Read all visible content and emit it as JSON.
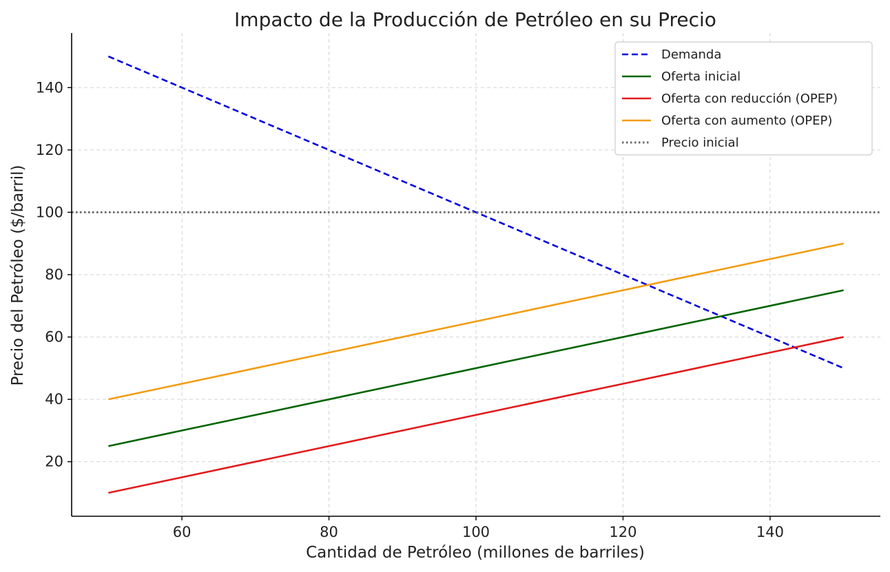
{
  "chart_data": {
    "type": "line",
    "title": "Impacto de la Producción de Petróleo en su Precio",
    "xlabel": "Cantidad de Petróleo (millones de barriles)",
    "ylabel": "Precio del Petróleo ($/barril)",
    "xlim": [
      45,
      155
    ],
    "ylim": [
      2.5,
      157.5
    ],
    "xticks": [
      60,
      80,
      100,
      120,
      140
    ],
    "yticks": [
      20,
      40,
      60,
      80,
      100,
      120,
      140
    ],
    "grid": true,
    "legend_position": "top-right",
    "series": [
      {
        "name": "Demanda",
        "color": "#0000dd",
        "style": "dashed",
        "x": [
          50,
          150
        ],
        "y": [
          150,
          50
        ]
      },
      {
        "name": "Oferta inicial",
        "color": "#006400",
        "style": "solid",
        "x": [
          50,
          150
        ],
        "y": [
          25,
          75
        ]
      },
      {
        "name": "Oferta con reducción (OPEP)",
        "color": "#e31a1c",
        "style": "solid",
        "x": [
          50,
          150
        ],
        "y": [
          10,
          60
        ]
      },
      {
        "name": "Oferta con aumento (OPEP)",
        "color": "#f39c12",
        "style": "solid",
        "x": [
          50,
          150
        ],
        "y": [
          40,
          90
        ]
      },
      {
        "name": "Precio inicial",
        "color": "#6b6b6b",
        "style": "dotted",
        "hline": 100
      }
    ]
  }
}
